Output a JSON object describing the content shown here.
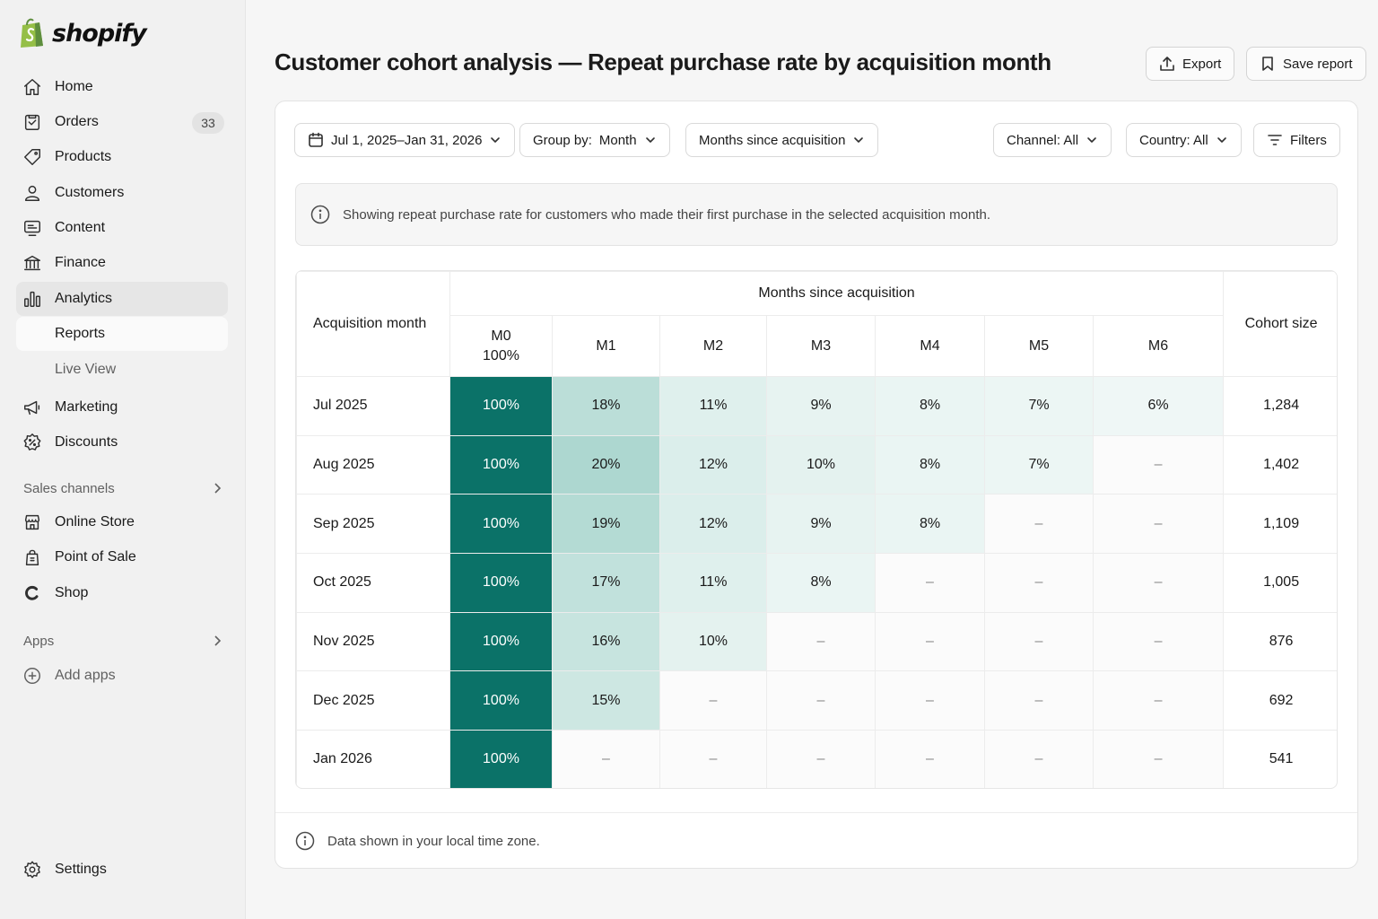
{
  "brand": {
    "name": "shopify"
  },
  "sidebar": {
    "items": [
      {
        "label": "Home",
        "icon": "home-icon"
      },
      {
        "label": "Orders",
        "icon": "orders-icon",
        "badge": "33"
      },
      {
        "label": "Products",
        "icon": "tag-icon"
      },
      {
        "label": "Customers",
        "icon": "person-icon"
      },
      {
        "label": "Content",
        "icon": "content-icon"
      },
      {
        "label": "Finance",
        "icon": "bank-icon"
      },
      {
        "label": "Analytics",
        "icon": "bar-chart-icon",
        "active": true
      },
      {
        "label": "Reports",
        "sub": true,
        "active": true
      },
      {
        "label": "Live View",
        "sub": true
      },
      {
        "label": "Marketing",
        "icon": "megaphone-icon"
      },
      {
        "label": "Discounts",
        "icon": "discount-icon"
      }
    ],
    "sales_channels_label": "Sales channels",
    "channels": [
      {
        "label": "Online Store",
        "icon": "store-icon"
      },
      {
        "label": "Point of Sale",
        "icon": "pos-icon"
      },
      {
        "label": "Shop",
        "icon": "shop-icon"
      }
    ],
    "apps_label": "Apps",
    "add_apps_label": "Add apps",
    "settings_label": "Settings"
  },
  "header": {
    "title": "Customer cohort analysis — Repeat purchase rate by acquisition month",
    "export_label": "Export",
    "save_label": "Save report"
  },
  "filters": {
    "date_range": "Jul 1, 2025–Jan 31, 2026",
    "group_by_label": "Group by:",
    "group_by_value": "Month",
    "axis": "Months since acquisition",
    "channel": "Channel: All",
    "country": "Country: All",
    "filters_label": "Filters"
  },
  "info_text": "Showing repeat purchase rate for customers who made their first purchase in the selected acquisition month.",
  "table": {
    "first_header": "Acquisition month",
    "group_header": "Months since acquisition",
    "m0_label": "M0",
    "m0_sub": "100%",
    "month_headers": [
      "M1",
      "M2",
      "M3",
      "M4",
      "M5",
      "M6"
    ],
    "size_header": "Cohort size",
    "rows": [
      {
        "month": "Jul 2025",
        "cells": [
          "100%",
          "18%",
          "11%",
          "9%",
          "8%",
          "7%",
          "6%"
        ],
        "size": "1,284"
      },
      {
        "month": "Aug 2025",
        "cells": [
          "100%",
          "20%",
          "12%",
          "10%",
          "8%",
          "7%",
          "–"
        ],
        "size": "1,402"
      },
      {
        "month": "Sep 2025",
        "cells": [
          "100%",
          "19%",
          "12%",
          "9%",
          "8%",
          "–",
          "–"
        ],
        "size": "1,109"
      },
      {
        "month": "Oct 2025",
        "cells": [
          "100%",
          "17%",
          "11%",
          "8%",
          "–",
          "–",
          "–"
        ],
        "size": "1,005"
      },
      {
        "month": "Nov 2025",
        "cells": [
          "100%",
          "16%",
          "10%",
          "–",
          "–",
          "–",
          "–"
        ],
        "size": "876"
      },
      {
        "month": "Dec 2025",
        "cells": [
          "100%",
          "15%",
          "–",
          "–",
          "–",
          "–",
          "–"
        ],
        "size": "692"
      },
      {
        "month": "Jan 2026",
        "cells": [
          "100%",
          "–",
          "–",
          "–",
          "–",
          "–",
          "–"
        ],
        "size": "541"
      }
    ]
  },
  "footnote": "Data shown in your local time zone.",
  "colors": {
    "m0_fill": "#0b7268",
    "heat_base": "#b9ddd6",
    "accent_green": "#5e8e3e"
  }
}
